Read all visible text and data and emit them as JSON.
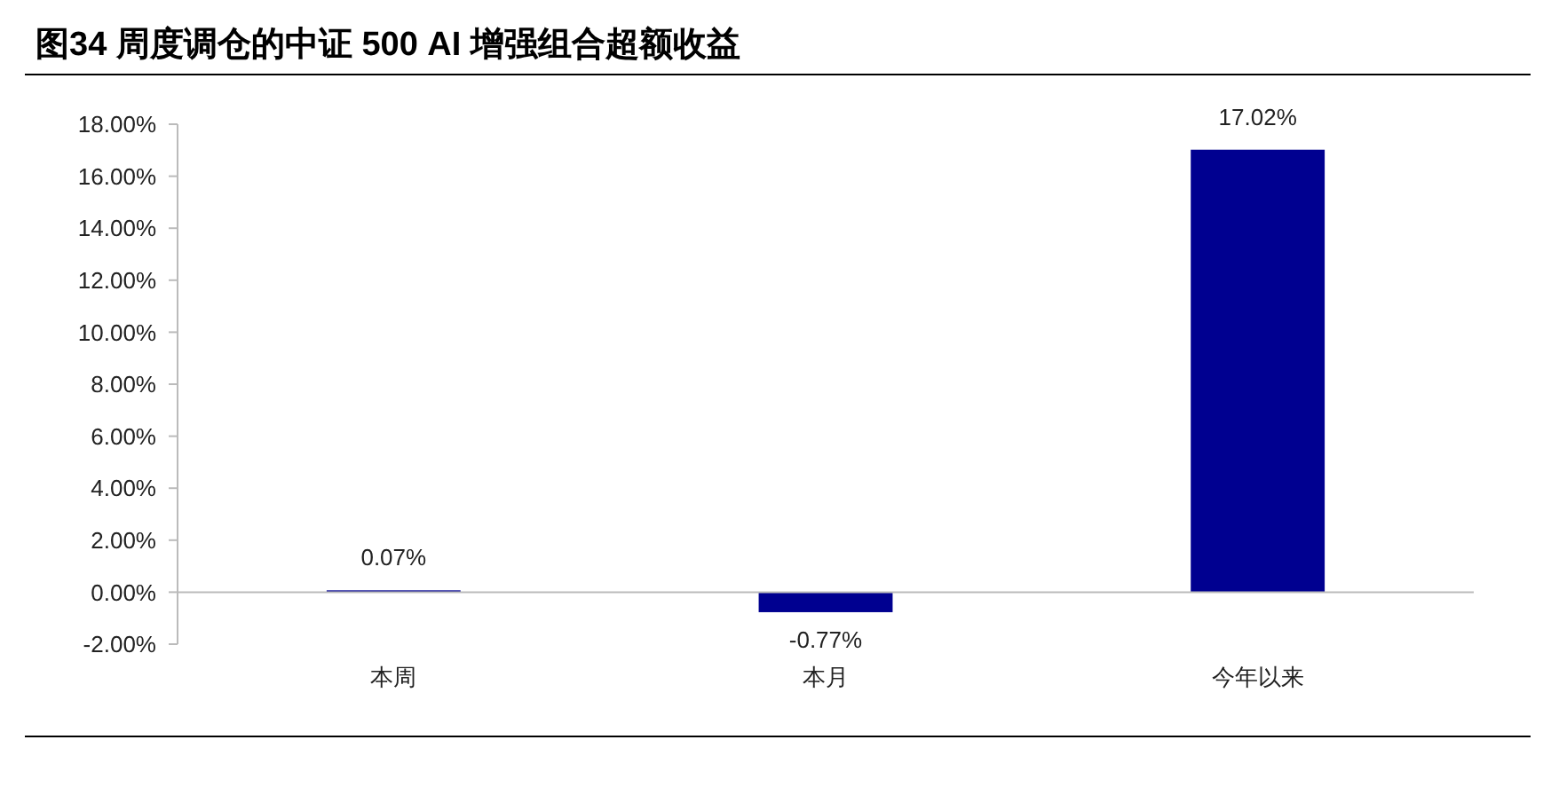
{
  "chart_data": {
    "type": "bar",
    "title": "图34 周度调仓的中证 500 AI 增强组合超额收益",
    "categories": [
      "本周",
      "本月",
      "今年以来"
    ],
    "values": [
      0.07,
      -0.77,
      17.02
    ],
    "color": "#000090",
    "value_labels": [
      "0.07%",
      "-0.77%",
      "17.02%"
    ],
    "ylim": [
      -2,
      18
    ],
    "yticks": [
      {
        "value": -2,
        "label": "-2.00%"
      },
      {
        "value": 0,
        "label": "0.00%"
      },
      {
        "value": 2,
        "label": "2.00%"
      },
      {
        "value": 4,
        "label": "4.00%"
      },
      {
        "value": 6,
        "label": "6.00%"
      },
      {
        "value": 8,
        "label": "8.00%"
      },
      {
        "value": 10,
        "label": "10.00%"
      },
      {
        "value": 12,
        "label": "12.00%"
      },
      {
        "value": 14,
        "label": "14.00%"
      },
      {
        "value": 16,
        "label": "16.00%"
      },
      {
        "value": 18,
        "label": "18.00%"
      }
    ]
  }
}
